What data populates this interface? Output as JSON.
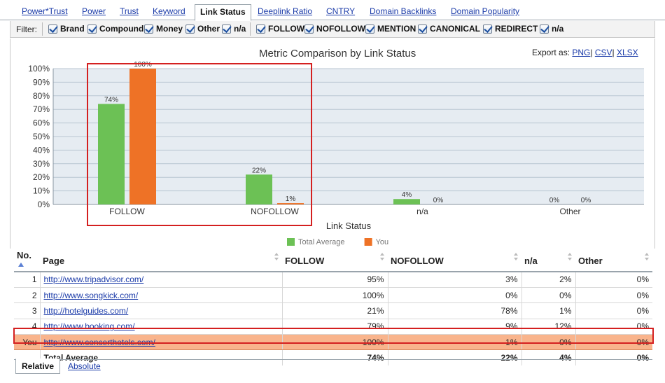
{
  "tabs": [
    {
      "label": "Power*Trust",
      "active": false
    },
    {
      "label": "Power",
      "active": false
    },
    {
      "label": "Trust",
      "active": false
    },
    {
      "label": "Keyword",
      "active": false
    },
    {
      "label": "Link Status",
      "active": true
    },
    {
      "label": "Deeplink Ratio",
      "active": false
    },
    {
      "label": "CNTRY",
      "active": false
    },
    {
      "label": "Domain Backlinks",
      "active": false
    },
    {
      "label": "Domain Popularity",
      "active": false
    }
  ],
  "filter": {
    "label": "Filter:",
    "group1": [
      "Brand",
      "Compound",
      "Money",
      "Other",
      "n/a"
    ],
    "group2": [
      "FOLLOW",
      "NOFOLLOW",
      "MENTION",
      "CANONICAL",
      "REDIRECT",
      "n/a"
    ]
  },
  "export": {
    "label": "Export as:",
    "png": "PNG",
    "csv": "CSV",
    "xlsx": "XLSX"
  },
  "chart_data": {
    "type": "bar",
    "title": "Metric Comparison by Link Status",
    "xlabel": "Link Status",
    "ylabel": "",
    "ylim": [
      0,
      100
    ],
    "yticks": [
      "0%",
      "10%",
      "20%",
      "30%",
      "40%",
      "50%",
      "60%",
      "70%",
      "80%",
      "90%",
      "100%"
    ],
    "categories": [
      "FOLLOW",
      "NOFOLLOW",
      "n/a",
      "Other"
    ],
    "series": [
      {
        "name": "Total Average",
        "values": [
          74,
          22,
          4,
          0
        ],
        "labels": [
          "74%",
          "22%",
          "4%",
          "0%"
        ],
        "color": "#6cc155"
      },
      {
        "name": "You",
        "values": [
          100,
          1,
          0,
          0
        ],
        "labels": [
          "100%",
          "1%",
          "0%",
          "0%"
        ],
        "color": "#ee7226"
      }
    ],
    "grid": true,
    "legend_position": "bottom"
  },
  "table": {
    "columns": [
      "No.",
      "Page",
      "FOLLOW",
      "NOFOLLOW",
      "n/a",
      "Other"
    ],
    "rows": [
      {
        "no": "1",
        "page": "http://www.tripadvisor.com/",
        "follow": "95%",
        "nofollow": "3%",
        "na": "2%",
        "other": "0%"
      },
      {
        "no": "2",
        "page": "http://www.songkick.com/",
        "follow": "100%",
        "nofollow": "0%",
        "na": "0%",
        "other": "0%"
      },
      {
        "no": "3",
        "page": "http://hotelguides.com/",
        "follow": "21%",
        "nofollow": "78%",
        "na": "1%",
        "other": "0%"
      },
      {
        "no": "4",
        "page": "http://www.booking.com/",
        "follow": "79%",
        "nofollow": "9%",
        "na": "12%",
        "other": "0%"
      },
      {
        "no": "You",
        "page": "http://www.concerthotels.com/",
        "follow": "100%",
        "nofollow": "1%",
        "na": "0%",
        "other": "0%"
      }
    ],
    "total": {
      "label": "Total Average",
      "follow": "74%",
      "nofollow": "22%",
      "na": "4%",
      "other": "0%"
    }
  },
  "bottom_tabs": [
    {
      "label": "Relative",
      "active": true
    },
    {
      "label": "Absolute",
      "active": false
    }
  ]
}
